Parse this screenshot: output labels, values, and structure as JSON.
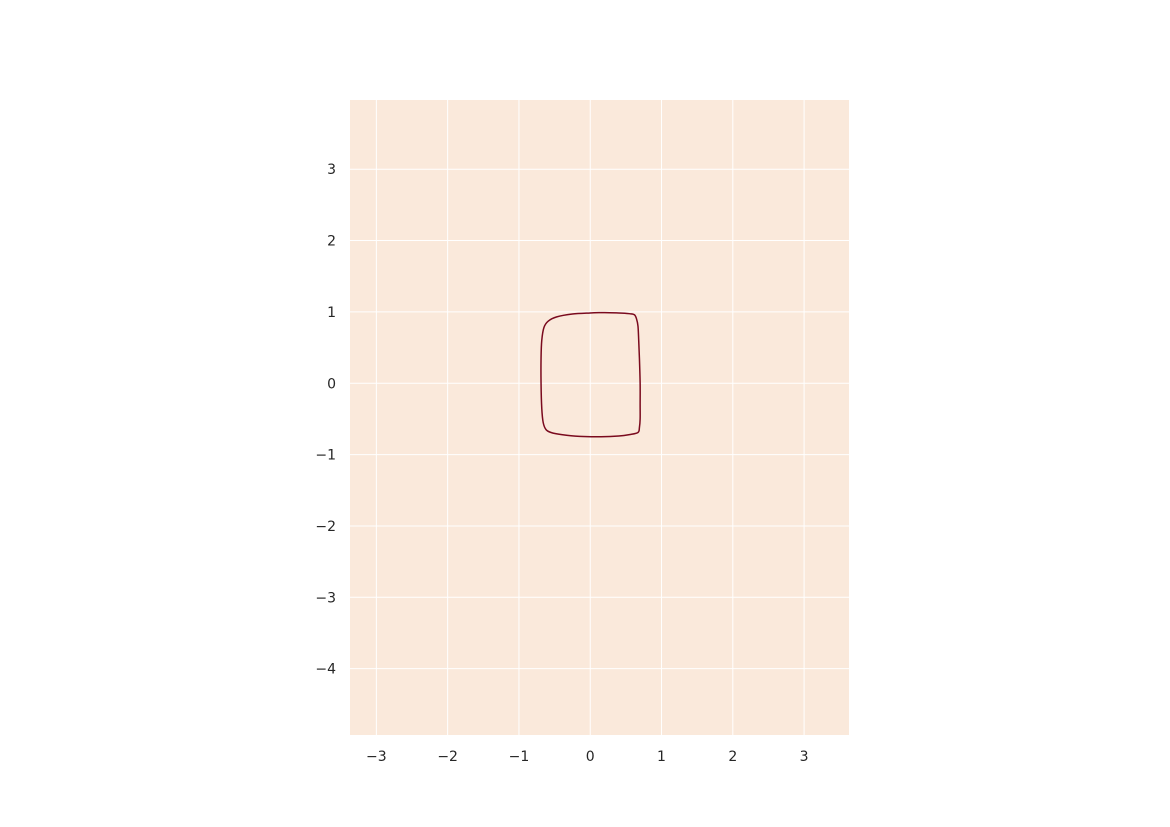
{
  "chart_data": {
    "type": "line",
    "title": "",
    "xlabel": "",
    "ylabel": "",
    "xlim": [
      -3.37,
      3.63
    ],
    "ylim": [
      -4.93,
      3.97
    ],
    "xticks": [
      -3,
      -2,
      -1,
      0,
      1,
      2,
      3
    ],
    "yticks": [
      -4,
      -3,
      -2,
      -1,
      0,
      1,
      2,
      3
    ],
    "xtick_labels": [
      "−3",
      "−2",
      "−1",
      "0",
      "1",
      "2",
      "3"
    ],
    "ytick_labels": [
      "−4",
      "−3",
      "−2",
      "−1",
      "0",
      "1",
      "2",
      "3"
    ],
    "grid": true,
    "legend": "none",
    "colors": {
      "plot_background": "#fae9db",
      "grid": "#ffffff",
      "curve": "#7a0a1e",
      "tick_text": "#262626"
    },
    "series": [
      {
        "x": [
          0.15,
          0.4,
          0.55,
          0.62,
          0.65,
          0.67,
          0.68,
          0.69,
          0.7,
          0.7,
          0.7,
          0.69,
          0.67,
          0.55,
          0.4,
          0.15,
          -0.15,
          -0.4,
          -0.55,
          -0.62,
          -0.66,
          -0.68,
          -0.69,
          -0.69,
          -0.68,
          -0.65,
          -0.59,
          -0.47,
          -0.25,
          0.0,
          0.15
        ],
        "y": [
          0.99,
          0.985,
          0.975,
          0.96,
          0.9,
          0.8,
          0.6,
          0.35,
          0.0,
          -0.3,
          -0.5,
          -0.62,
          -0.69,
          -0.72,
          -0.74,
          -0.75,
          -0.745,
          -0.72,
          -0.69,
          -0.65,
          -0.55,
          -0.35,
          0.0,
          0.35,
          0.6,
          0.78,
          0.87,
          0.93,
          0.97,
          0.985,
          0.99
        ]
      }
    ]
  }
}
